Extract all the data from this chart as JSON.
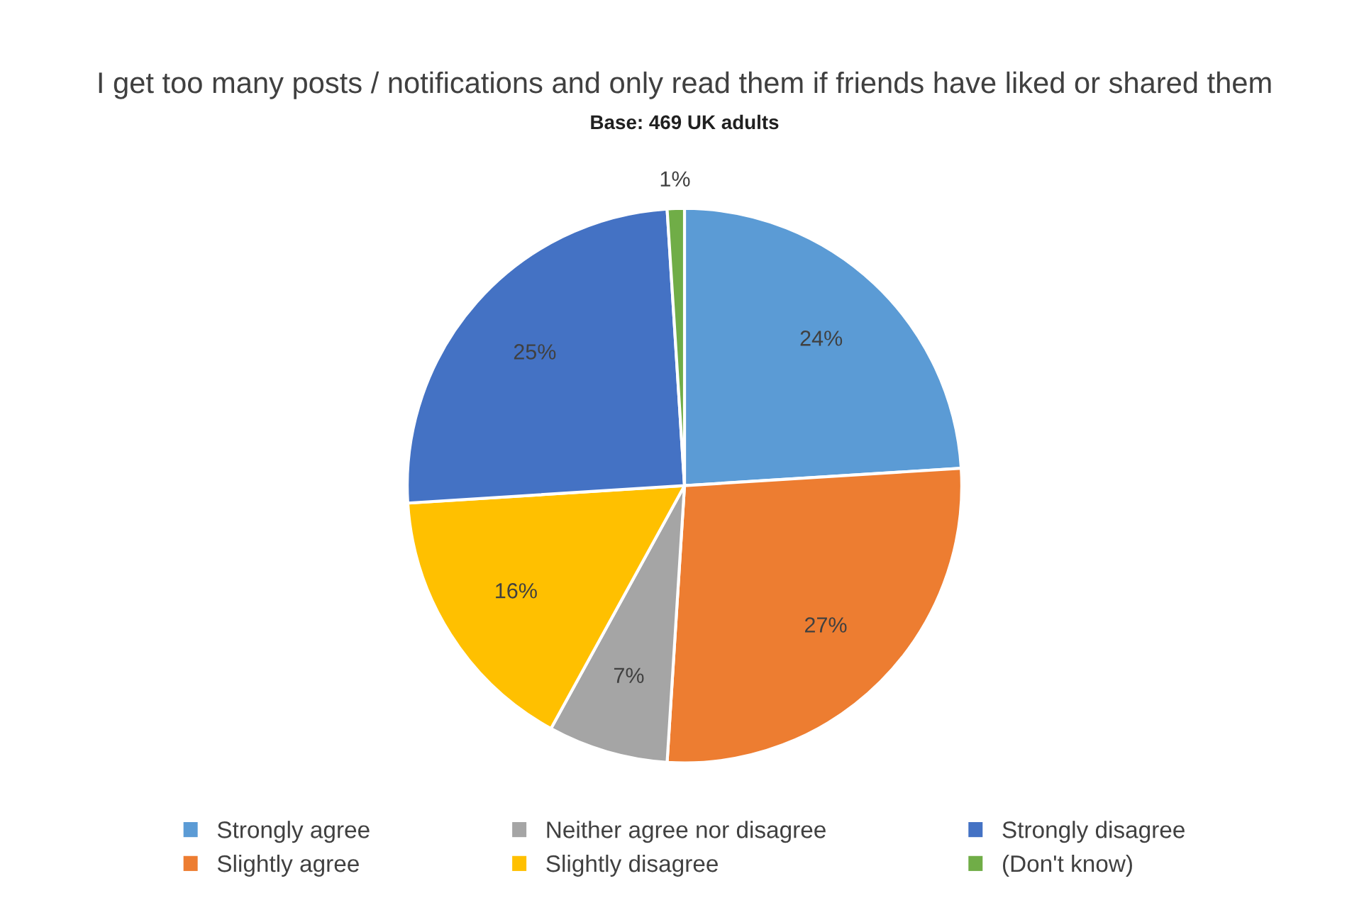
{
  "chart_data": {
    "type": "pie",
    "title": "I get too many posts / notifications and only read them if friends have liked or shared them",
    "subtitle": "Base: 469 UK adults",
    "categories": [
      "Strongly agree",
      "Slightly agree",
      "Neither agree nor disagree",
      "Slightly disagree",
      "Strongly disagree",
      "(Don't know)"
    ],
    "values": [
      24,
      27,
      7,
      16,
      25,
      1
    ],
    "colors": [
      "#5b9bd5",
      "#ed7d31",
      "#a5a5a5",
      "#ffc000",
      "#4472c4",
      "#70ad47"
    ],
    "value_labels": [
      "24%",
      "27%",
      "7%",
      "16%",
      "25%",
      "1%"
    ],
    "legend": "bottom"
  }
}
